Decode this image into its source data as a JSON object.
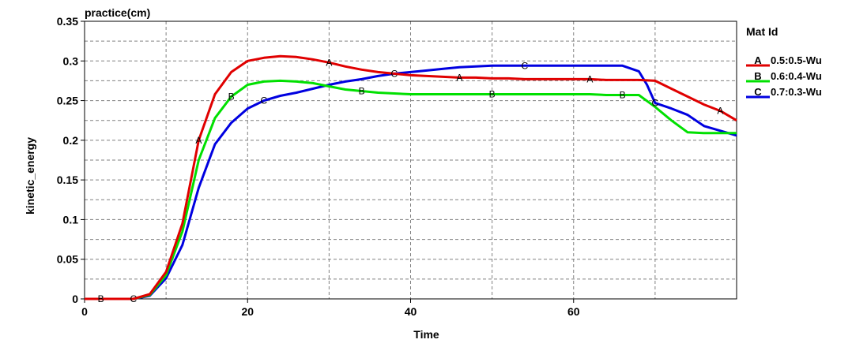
{
  "chart_data": {
    "type": "line",
    "title": "practice(cm)",
    "xlabel": "Time",
    "ylabel": "kinetic_energy",
    "xlim": [
      0,
      80
    ],
    "ylim": [
      0,
      0.35
    ],
    "xticks": [
      "0",
      "20",
      "40",
      "60"
    ],
    "xtick_values": [
      0,
      20,
      40,
      60
    ],
    "yticks": [
      "0",
      "0.05",
      "0.1",
      "0.15",
      "0.2",
      "0.25",
      "0.3",
      "0.35"
    ],
    "ytick_values": [
      0,
      0.05,
      0.1,
      0.15,
      0.2,
      0.25,
      0.3,
      0.35
    ],
    "grid": true,
    "legend_title": "Mat Id",
    "legend_position": "right",
    "series": [
      {
        "name": "0.5:0.5-Wu",
        "marker": "A",
        "color": "#e00000",
        "x": [
          0,
          2,
          6,
          8,
          10,
          12,
          14,
          16,
          18,
          20,
          22,
          24,
          26,
          28,
          30,
          32,
          34,
          36,
          38,
          40,
          42,
          44,
          46,
          48,
          50,
          52,
          54,
          56,
          58,
          60,
          62,
          64,
          66,
          68,
          70,
          72,
          74,
          76,
          78,
          80
        ],
        "y": [
          0,
          0,
          0,
          0.006,
          0.034,
          0.095,
          0.2,
          0.258,
          0.286,
          0.3,
          0.304,
          0.306,
          0.305,
          0.302,
          0.298,
          0.293,
          0.289,
          0.286,
          0.284,
          0.282,
          0.281,
          0.28,
          0.279,
          0.279,
          0.278,
          0.278,
          0.277,
          0.277,
          0.277,
          0.277,
          0.277,
          0.276,
          0.276,
          0.276,
          0.275,
          0.265,
          0.255,
          0.245,
          0.237,
          0.225
        ],
        "marker_x": [
          14,
          30,
          46,
          62,
          78
        ]
      },
      {
        "name": "0.6:0.4-Wu",
        "marker": "B",
        "color": "#00e000",
        "x": [
          0,
          2,
          6,
          8,
          10,
          12,
          14,
          16,
          18,
          20,
          22,
          24,
          26,
          28,
          30,
          32,
          34,
          36,
          38,
          40,
          42,
          44,
          46,
          48,
          50,
          52,
          54,
          56,
          58,
          60,
          62,
          64,
          66,
          68,
          70,
          72,
          74,
          76,
          78,
          80
        ],
        "y": [
          0,
          0,
          0,
          0.005,
          0.03,
          0.085,
          0.175,
          0.228,
          0.255,
          0.27,
          0.274,
          0.275,
          0.274,
          0.272,
          0.268,
          0.264,
          0.262,
          0.26,
          0.259,
          0.258,
          0.258,
          0.258,
          0.258,
          0.258,
          0.258,
          0.258,
          0.258,
          0.258,
          0.258,
          0.258,
          0.258,
          0.257,
          0.257,
          0.257,
          0.242,
          0.225,
          0.21,
          0.209,
          0.209,
          0.209
        ],
        "marker_x": [
          2,
          18,
          34,
          50,
          66
        ]
      },
      {
        "name": "0.7:0.3-Wu",
        "marker": "C",
        "color": "#0000e0",
        "x": [
          0,
          2,
          6,
          8,
          10,
          12,
          14,
          16,
          18,
          20,
          22,
          24,
          26,
          28,
          30,
          32,
          34,
          36,
          38,
          40,
          42,
          44,
          46,
          48,
          50,
          52,
          54,
          56,
          58,
          60,
          62,
          64,
          66,
          68,
          69,
          70,
          72,
          74,
          76,
          78,
          80
        ],
        "y": [
          0,
          0,
          0,
          0.004,
          0.026,
          0.068,
          0.14,
          0.195,
          0.222,
          0.24,
          0.25,
          0.256,
          0.26,
          0.265,
          0.27,
          0.274,
          0.277,
          0.281,
          0.284,
          0.286,
          0.288,
          0.29,
          0.292,
          0.293,
          0.294,
          0.294,
          0.294,
          0.294,
          0.294,
          0.294,
          0.294,
          0.294,
          0.294,
          0.287,
          0.27,
          0.247,
          0.24,
          0.232,
          0.218,
          0.212,
          0.206
        ],
        "marker_x": [
          6,
          22,
          38,
          54,
          70
        ]
      }
    ]
  }
}
